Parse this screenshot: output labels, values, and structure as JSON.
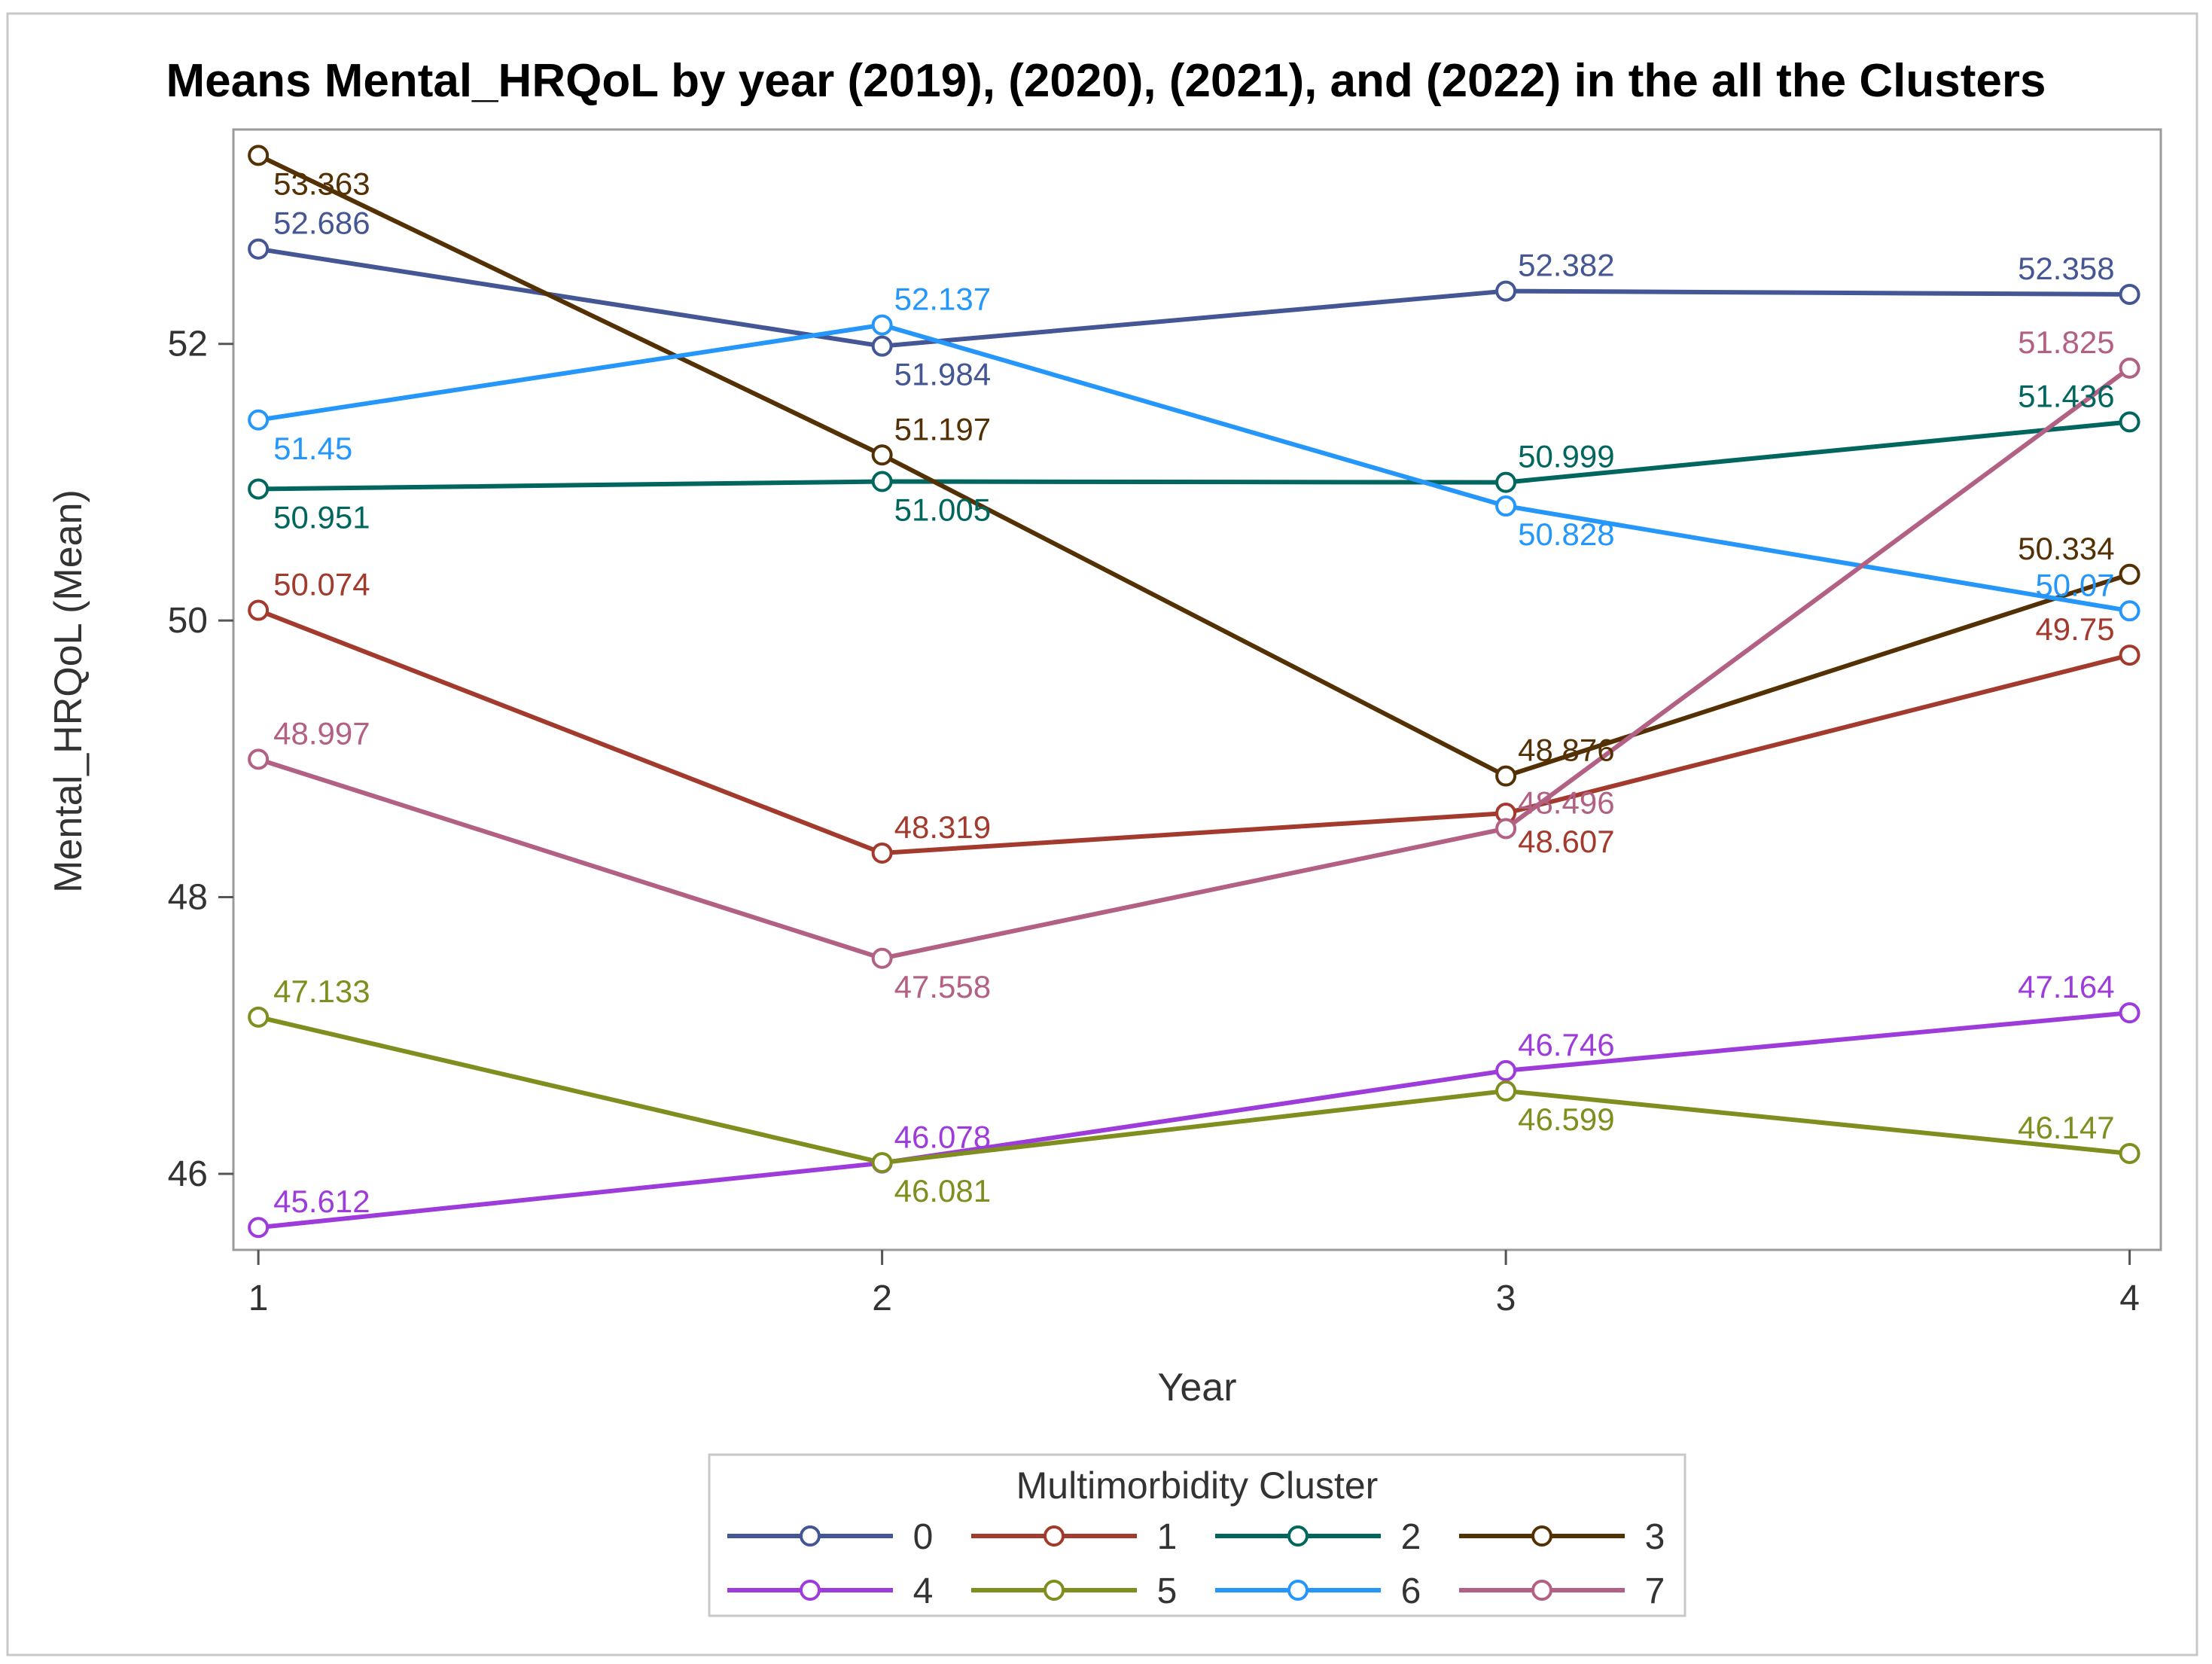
{
  "chart_data": {
    "type": "line",
    "title": "Means Mental_HRQoL by year  (2019), (2020), (2021), and (2022) in the all the Clusters",
    "xlabel": "Year",
    "ylabel": "Mental_HRQoL (Mean)",
    "x": [
      1,
      2,
      3,
      4
    ],
    "x_ticks": [
      "1",
      "2",
      "3",
      "4"
    ],
    "y_ticks": [
      "46",
      "48",
      "50",
      "52"
    ],
    "xlim": [
      0.96,
      4.05
    ],
    "ylim": [
      45.45,
      53.55
    ],
    "grid": false,
    "legend": {
      "title": "Multimorbidity Cluster",
      "position": "bottom"
    },
    "series": [
      {
        "name": "0",
        "color": "#445694",
        "values": [
          52.686,
          51.984,
          52.382,
          52.358
        ],
        "labels": [
          "52.686",
          "51.984",
          "52.382",
          "52.358"
        ],
        "label_pos": [
          "above",
          "below",
          "above",
          "above"
        ]
      },
      {
        "name": "1",
        "color": "#A23A2E",
        "values": [
          50.074,
          48.319,
          48.607,
          49.75
        ],
        "labels": [
          "50.074",
          "48.319",
          "48.607",
          "49.75"
        ],
        "label_pos": [
          "above",
          "above",
          "below",
          "above"
        ]
      },
      {
        "name": "2",
        "color": "#01665E",
        "values": [
          50.951,
          51.005,
          50.999,
          51.436
        ],
        "labels": [
          "50.951",
          "51.005",
          "50.999",
          "51.436"
        ],
        "label_pos": [
          "below",
          "below",
          "above",
          "above"
        ]
      },
      {
        "name": "3",
        "color": "#543005",
        "values": [
          53.363,
          51.197,
          48.876,
          50.334
        ],
        "labels": [
          "53.363",
          "51.197",
          "48.876",
          "50.334"
        ],
        "label_pos": [
          "below",
          "above",
          "above",
          "above"
        ]
      },
      {
        "name": "4",
        "color": "#9D3CDB",
        "values": [
          45.612,
          46.078,
          46.746,
          47.164
        ],
        "labels": [
          "45.612",
          "46.078",
          "46.746",
          "47.164"
        ],
        "label_pos": [
          "above",
          "above",
          "above",
          "above"
        ]
      },
      {
        "name": "5",
        "color": "#7F8E1F",
        "values": [
          47.133,
          46.081,
          46.599,
          46.147
        ],
        "labels": [
          "47.133",
          "46.081",
          "46.599",
          "46.147"
        ],
        "label_pos": [
          "above",
          "below",
          "below",
          "above"
        ]
      },
      {
        "name": "6",
        "color": "#2597FA",
        "values": [
          51.45,
          52.137,
          50.828,
          50.07
        ],
        "labels": [
          "51.45",
          "52.137",
          "50.828",
          "50.07"
        ],
        "label_pos": [
          "below",
          "above",
          "below",
          "above"
        ]
      },
      {
        "name": "7",
        "color": "#B26084",
        "values": [
          48.997,
          47.558,
          48.496,
          51.825
        ],
        "labels": [
          "48.997",
          "47.558",
          "48.496",
          "51.825"
        ],
        "label_pos": [
          "above",
          "below",
          "above",
          "above"
        ]
      }
    ]
  }
}
